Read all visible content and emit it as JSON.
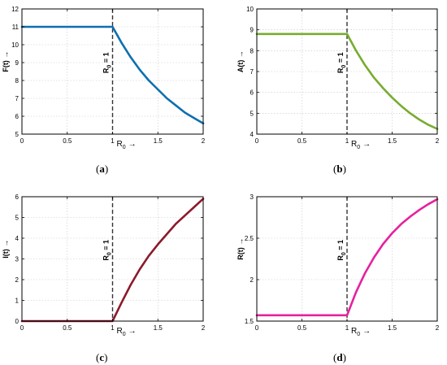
{
  "chart_data": [
    {
      "type": "line",
      "panel_label": "(a)",
      "caption_letter": "a",
      "ylabel": "F(t) →",
      "xlabel_main": "R",
      "xlabel_sub": "0",
      "xlabel_arrow": "→",
      "xlim": [
        0,
        2
      ],
      "ylim": [
        5,
        12
      ],
      "xticks": [
        "0",
        "0.5",
        "1",
        "1.5",
        "2"
      ],
      "yticks": [
        "5",
        "6",
        "7",
        "8",
        "9",
        "10",
        "11",
        "12"
      ],
      "grid": true,
      "vline": {
        "x": 1,
        "label": "R0 = 1",
        "label_main": "R",
        "label_sub": "0",
        "label_rest": " = 1"
      },
      "color": "#0d6fb0",
      "series": [
        {
          "x": [
            0,
            0.25,
            0.5,
            0.75,
            1.0,
            1.1,
            1.2,
            1.3,
            1.4,
            1.5,
            1.6,
            1.7,
            1.8,
            1.9,
            2.0
          ],
          "y": [
            11,
            11,
            11,
            11,
            11,
            10.1,
            9.3,
            8.6,
            8.0,
            7.5,
            7.0,
            6.6,
            6.2,
            5.9,
            5.6
          ]
        }
      ]
    },
    {
      "type": "line",
      "panel_label": "(b)",
      "caption_letter": "b",
      "ylabel": "A(t) →",
      "xlabel_main": "R",
      "xlabel_sub": "0",
      "xlabel_arrow": "→",
      "xlim": [
        0,
        2
      ],
      "ylim": [
        4,
        10
      ],
      "xticks": [
        "0",
        "0.5",
        "1",
        "1.5",
        "2"
      ],
      "yticks": [
        "4",
        "5",
        "6",
        "7",
        "8",
        "9",
        "10"
      ],
      "grid": true,
      "vline": {
        "x": 1,
        "label": "R0 = 1",
        "label_main": "R",
        "label_sub": "0",
        "label_rest": " = 1"
      },
      "color": "#77ac30",
      "series": [
        {
          "x": [
            0,
            0.25,
            0.5,
            0.75,
            1.0,
            1.1,
            1.2,
            1.3,
            1.4,
            1.5,
            1.6,
            1.7,
            1.8,
            1.9,
            2.0
          ],
          "y": [
            8.8,
            8.8,
            8.8,
            8.8,
            8.8,
            8.0,
            7.3,
            6.7,
            6.2,
            5.75,
            5.35,
            5.0,
            4.7,
            4.45,
            4.25
          ]
        }
      ]
    },
    {
      "type": "line",
      "panel_label": "(c)",
      "caption_letter": "c",
      "ylabel": "I(t) →",
      "xlabel_main": "R",
      "xlabel_sub": "0",
      "xlabel_arrow": "→",
      "xlim": [
        0,
        2
      ],
      "ylim": [
        0,
        6
      ],
      "xticks": [
        "0",
        "0.5",
        "1",
        "1.5",
        "2"
      ],
      "yticks": [
        "0",
        "1",
        "2",
        "3",
        "4",
        "5",
        "6"
      ],
      "grid": true,
      "vline": {
        "x": 1,
        "label": "R0 = 1",
        "label_main": "R",
        "label_sub": "0",
        "label_rest": " = 1"
      },
      "color": "#8b1a2b",
      "series": [
        {
          "x": [
            0,
            0.25,
            0.5,
            0.75,
            1.0,
            1.1,
            1.2,
            1.3,
            1.4,
            1.5,
            1.6,
            1.7,
            1.8,
            1.9,
            2.0
          ],
          "y": [
            0,
            0,
            0,
            0,
            0,
            0.9,
            1.75,
            2.5,
            3.15,
            3.7,
            4.2,
            4.7,
            5.1,
            5.5,
            5.9
          ]
        }
      ]
    },
    {
      "type": "line",
      "panel_label": "(d)",
      "caption_letter": "d",
      "ylabel": "R(t) →",
      "xlabel_main": "R",
      "xlabel_sub": "0",
      "xlabel_arrow": "→",
      "xlim": [
        0,
        2
      ],
      "ylim": [
        1.5,
        3
      ],
      "xticks": [
        "0",
        "0.5",
        "1",
        "1.5",
        "2"
      ],
      "yticks": [
        "1.5",
        "2",
        "2.5",
        "3"
      ],
      "grid": true,
      "vline": {
        "x": 1,
        "label": "R0 = 1",
        "label_main": "R",
        "label_sub": "0",
        "label_rest": " = 1"
      },
      "color": "#e6219e",
      "series": [
        {
          "x": [
            0,
            0.25,
            0.5,
            0.75,
            1.0,
            1.1,
            1.2,
            1.3,
            1.4,
            1.5,
            1.6,
            1.7,
            1.8,
            1.9,
            2.0
          ],
          "y": [
            1.57,
            1.57,
            1.57,
            1.57,
            1.57,
            1.85,
            2.08,
            2.27,
            2.43,
            2.56,
            2.67,
            2.76,
            2.84,
            2.91,
            2.97
          ]
        }
      ]
    }
  ]
}
